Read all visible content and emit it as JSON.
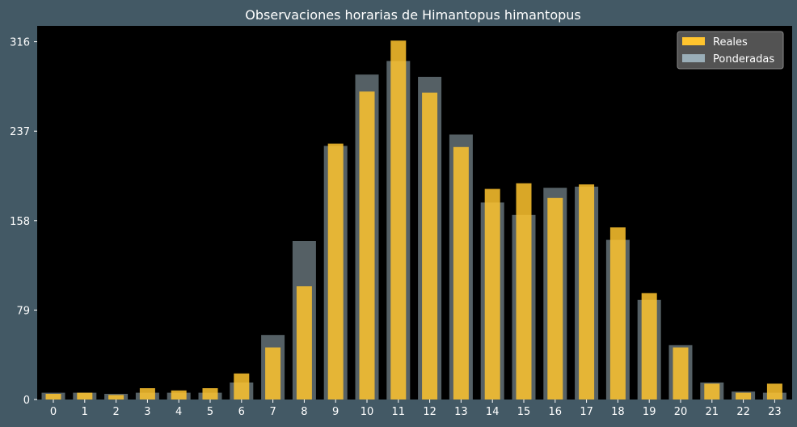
{
  "colors": {
    "figure_bg": "#435965",
    "plot_bg": "#000000",
    "real": "#ffc42e",
    "weighted": "#9aaeb8",
    "text": "#ffffff"
  },
  "chart_data": {
    "type": "bar",
    "title": "Observaciones horarias de Himantopus himantopus",
    "xlabel": "",
    "ylabel": "",
    "categories": [
      "0",
      "1",
      "2",
      "3",
      "4",
      "5",
      "6",
      "7",
      "8",
      "9",
      "10",
      "11",
      "12",
      "13",
      "14",
      "15",
      "16",
      "17",
      "18",
      "19",
      "20",
      "21",
      "22",
      "23"
    ],
    "ylim": [
      0,
      330
    ],
    "yticks": [
      0,
      79,
      158,
      237,
      316
    ],
    "legend_position": "top-right",
    "grid": false,
    "series": [
      {
        "name": "Reales",
        "color": "#ffc42e",
        "values": [
          5,
          6,
          4,
          10,
          8,
          10,
          23,
          46,
          100,
          226,
          272,
          317,
          271,
          223,
          186,
          191,
          178,
          190,
          152,
          94,
          46,
          14,
          6,
          14
        ]
      },
      {
        "name": "Ponderadas",
        "color": "#9aaeb8",
        "values": [
          6,
          6,
          5,
          6,
          6,
          6,
          15,
          57,
          140,
          224,
          287,
          299,
          285,
          234,
          174,
          163,
          187,
          188,
          141,
          88,
          48,
          15,
          7,
          6
        ]
      }
    ]
  }
}
